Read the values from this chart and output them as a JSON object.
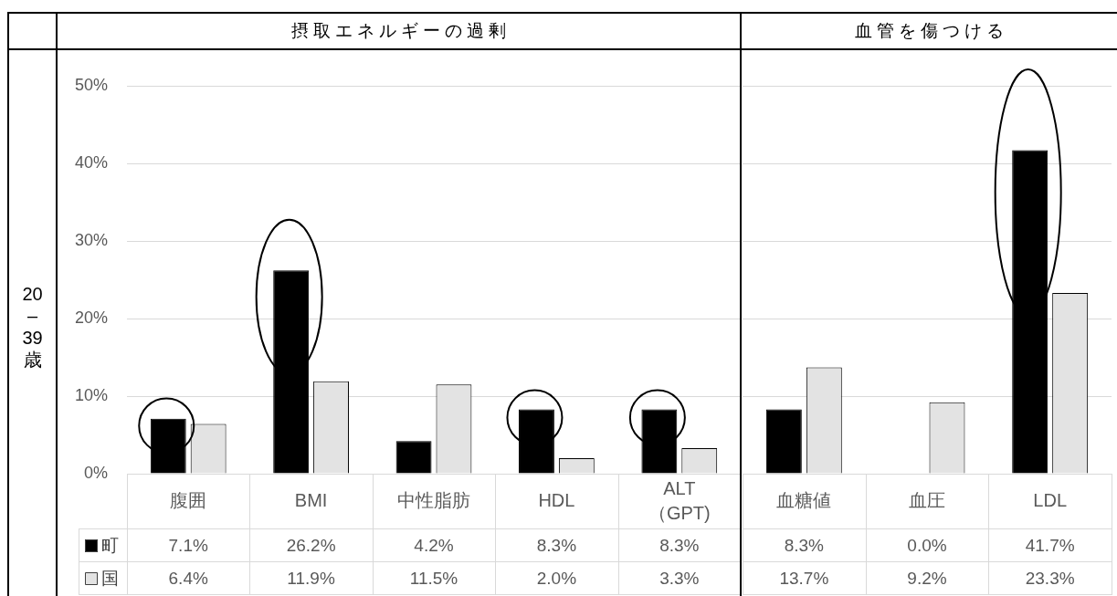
{
  "chart_data": [
    {
      "type": "bar",
      "title": "摂取エネルギーの過剰",
      "categories": [
        "腹囲",
        "BMI",
        "中性脂肪",
        "HDL",
        "ALT（GPT)"
      ],
      "series": [
        {
          "name": "町",
          "color": "#000000",
          "values": [
            7.1,
            26.2,
            4.2,
            8.3,
            8.3
          ],
          "value_labels": [
            "7.1%",
            "26.2%",
            "4.2%",
            "8.3%",
            "8.3%"
          ]
        },
        {
          "name": "国",
          "color": "#e3e3e3",
          "values": [
            6.4,
            11.9,
            11.5,
            2.0,
            3.3
          ],
          "value_labels": [
            "6.4%",
            "11.9%",
            "11.5%",
            "2.0%",
            "3.3%"
          ]
        }
      ],
      "ylim": [
        0,
        50
      ],
      "yticks": [
        {
          "value": 0,
          "label": "0%"
        },
        {
          "value": 10,
          "label": "10%"
        },
        {
          "value": 20,
          "label": "20%"
        },
        {
          "value": 30,
          "label": "30%"
        },
        {
          "value": 40,
          "label": "40%"
        },
        {
          "value": 50,
          "label": "50%"
        }
      ],
      "grid": "y",
      "legend": "bottom",
      "annotations": [
        "20–39歳"
      ]
    },
    {
      "type": "bar",
      "title": "血管を傷つける",
      "categories": [
        "血糖値",
        "血圧",
        "LDL"
      ],
      "series": [
        {
          "color": "#000000",
          "values": [
            8.3,
            0.0,
            41.7
          ],
          "value_labels": [
            "8.3%",
            "0.0%",
            "41.7%"
          ]
        },
        {
          "color": "#e3e3e3",
          "values": [
            13.7,
            9.2,
            23.3
          ],
          "value_labels": [
            "13.7%",
            "9.2%",
            "23.3%"
          ]
        }
      ],
      "ylim": [
        0,
        50
      ],
      "grid": "y",
      "tick_labels": "x"
    }
  ]
}
